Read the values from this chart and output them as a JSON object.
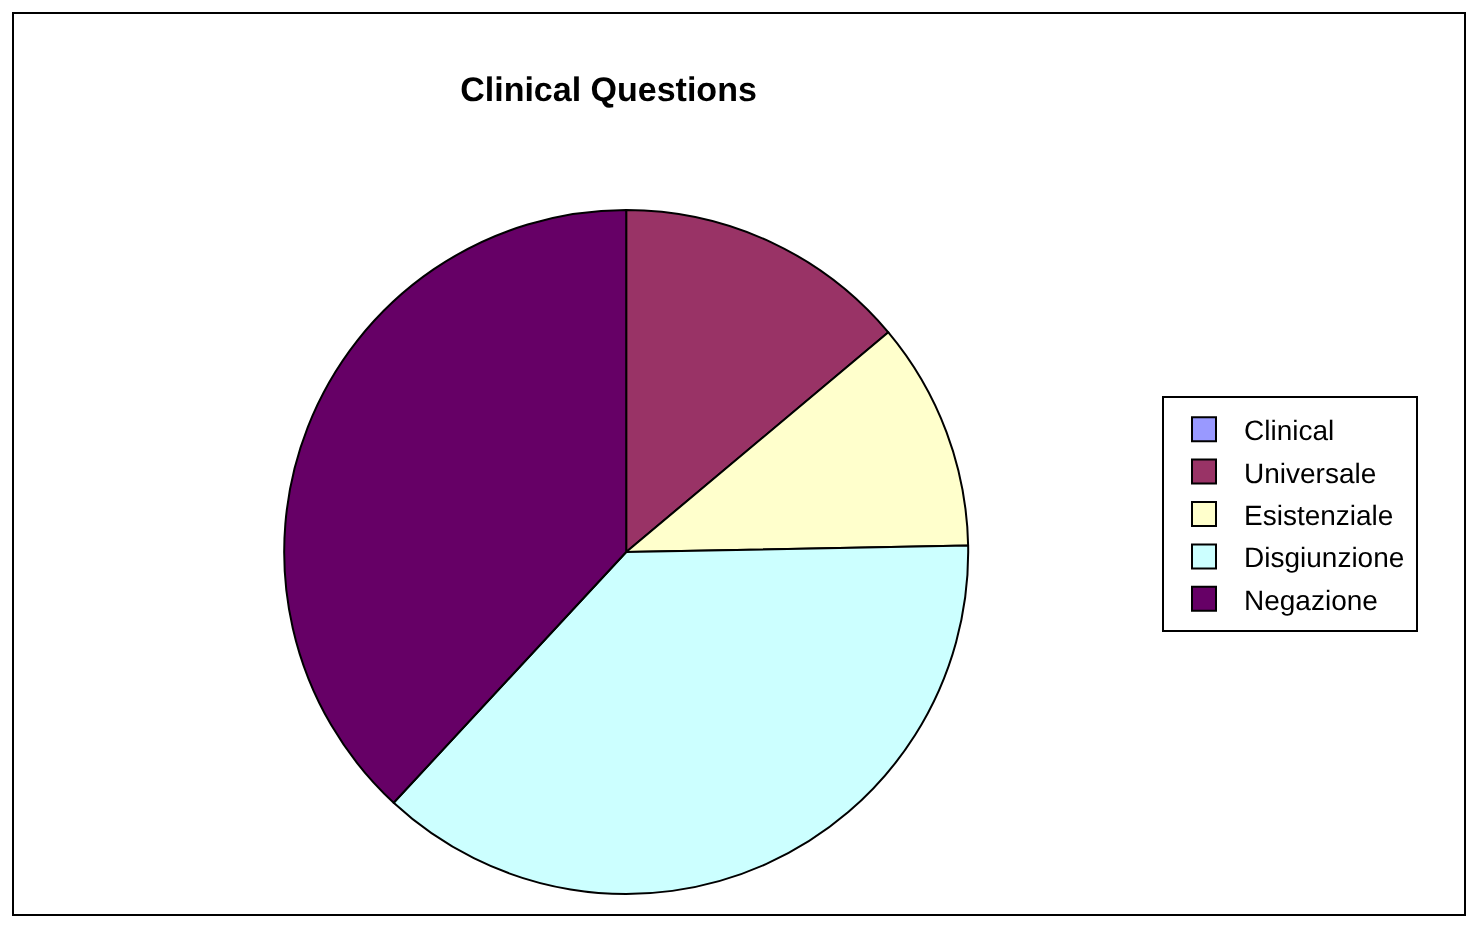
{
  "chart_data": {
    "type": "pie",
    "title": "Clinical Questions",
    "categories": [
      "Clinical",
      "Universale",
      "Esistenziale",
      "Disgiunzione",
      "Negazione"
    ],
    "values": [
      0,
      13.9,
      10.8,
      37.2,
      38.1
    ],
    "colors": [
      "#9999ff",
      "#993366",
      "#ffffcc",
      "#ccffff",
      "#660066"
    ],
    "legend": "right"
  }
}
